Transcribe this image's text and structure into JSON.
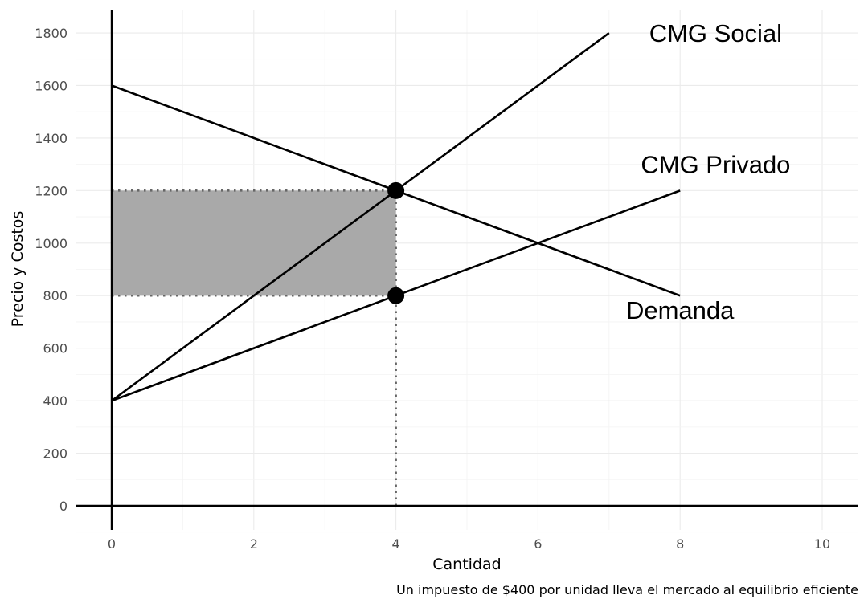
{
  "chart_data": {
    "type": "line",
    "xlabel": "Cantidad",
    "ylabel": "Precio y Costos",
    "caption": "Un impuesto de $400 por unidad lleva el mercado al equilibrio eficiente",
    "xlim": [
      0,
      10
    ],
    "ylim": [
      0,
      1800
    ],
    "x_ticks": [
      0,
      2,
      4,
      6,
      8,
      10
    ],
    "y_ticks": [
      0,
      200,
      400,
      600,
      800,
      1000,
      1200,
      1400,
      1600,
      1800
    ],
    "grid": true,
    "series": [
      {
        "name": "CMG Social",
        "x": [
          0,
          7
        ],
        "y": [
          400,
          1800
        ]
      },
      {
        "name": "CMG Privado",
        "x": [
          0,
          8
        ],
        "y": [
          400,
          1200
        ]
      },
      {
        "name": "Demanda",
        "x": [
          0,
          8
        ],
        "y": [
          1600,
          800
        ]
      }
    ],
    "points": [
      {
        "x": 4,
        "y": 1200
      },
      {
        "x": 4,
        "y": 800
      }
    ],
    "shaded_region": {
      "x": [
        0,
        4
      ],
      "y": [
        800,
        1200
      ]
    },
    "reference_lines": [
      {
        "x": [
          0,
          4
        ],
        "y": [
          1200,
          1200
        ]
      },
      {
        "x": [
          0,
          4
        ],
        "y": [
          800,
          800
        ]
      },
      {
        "x": [
          4,
          4
        ],
        "y": [
          0,
          1200
        ]
      }
    ],
    "annotations": [
      {
        "text": "CMG Social",
        "x": 8.5,
        "y": 1800
      },
      {
        "text": "CMG Privado",
        "x": 8.5,
        "y": 1300
      },
      {
        "text": "Demanda",
        "x": 8,
        "y": 745
      }
    ]
  }
}
